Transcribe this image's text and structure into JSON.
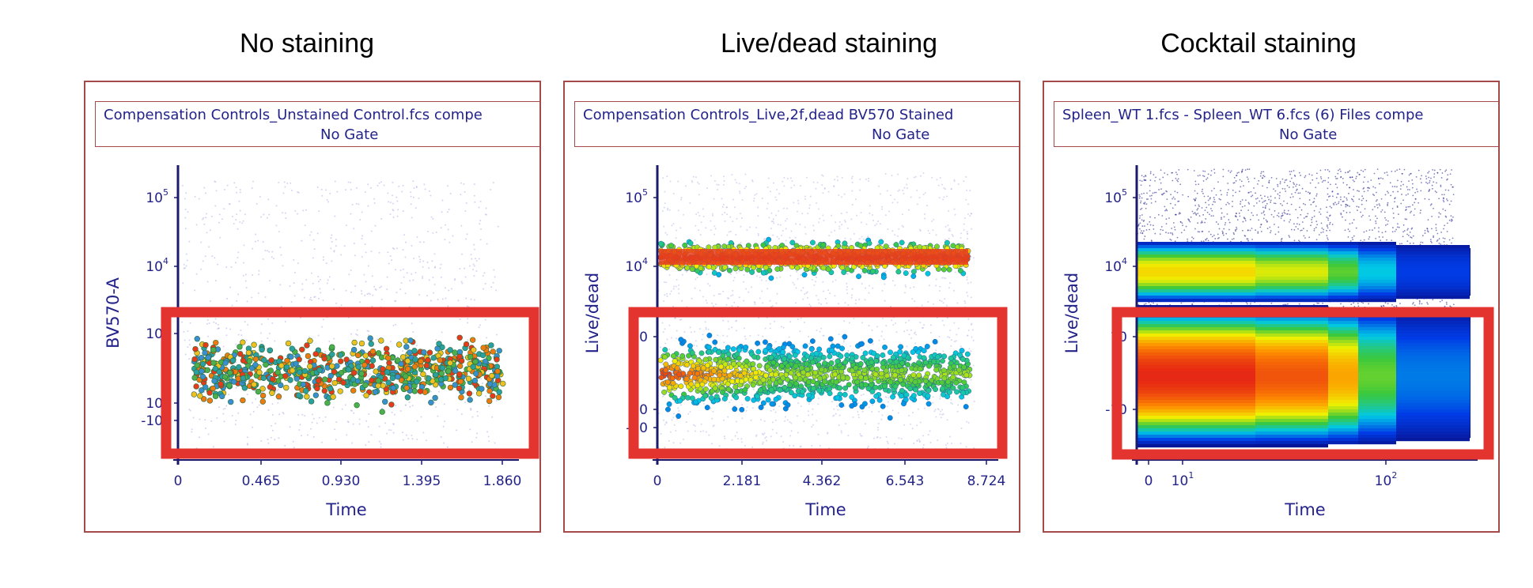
{
  "titles": [
    "No staining",
    "Live/dead staining",
    "Cocktail staining"
  ],
  "chart_data": [
    {
      "type": "scatter",
      "header_file": "Compensation Controls_Unstained Control.fcs compe",
      "header_gate": "No Gate",
      "xlabel": "Time",
      "ylabel": "BV570-A",
      "x_ticks": [
        "0",
        "0.465",
        "0.930",
        "1.395",
        "1.860"
      ],
      "y_ticks": [
        {
          "base": "10",
          "exp": "5"
        },
        {
          "base": "10",
          "exp": "4"
        },
        {
          "base": "10",
          "exp": "3"
        },
        {
          "base": "10",
          "exp": "2"
        },
        {
          "base": "-10",
          "exp": "2"
        }
      ],
      "xlim": [
        0,
        1.86
      ],
      "y_scale": "biexponential",
      "populations": [
        {
          "y_center": 80,
          "description_level": "low"
        }
      ],
      "highlight": "low-signal region boxed in red"
    },
    {
      "type": "scatter",
      "header_file": "Compensation Controls_Live,2f,dead BV570 Stained",
      "header_gate": "No Gate",
      "xlabel": "Time",
      "ylabel": "Live/dead",
      "x_ticks": [
        "0",
        "2.181",
        "4.362",
        "6.543",
        "8.724"
      ],
      "y_ticks": [
        {
          "base": "10",
          "exp": "5"
        },
        {
          "base": "10",
          "exp": "4"
        },
        {
          "base": "10",
          "exp": ""
        },
        {
          "base": "10",
          "exp": ""
        },
        {
          "base": "-10",
          "exp": ""
        }
      ],
      "xlim": [
        0,
        8.724
      ],
      "y_scale": "biexponential",
      "populations": [
        {
          "y_center": 10000,
          "description_level": "dead"
        },
        {
          "y_center": 150,
          "description_level": "live"
        }
      ],
      "highlight": "low-signal region boxed in red"
    },
    {
      "type": "scatter",
      "header_file": "Spleen_WT 1.fcs - Spleen_WT 6.fcs (6) Files compe",
      "header_gate": "No Gate",
      "xlabel": "Time",
      "ylabel": "Live/dead",
      "x_ticks": [
        {
          "base": "0",
          "exp": ""
        },
        {
          "base": "10",
          "exp": "1"
        },
        {
          "base": "10",
          "exp": "2"
        }
      ],
      "y_ticks": [
        {
          "base": "10",
          "exp": "5"
        },
        {
          "base": "10",
          "exp": "4"
        },
        {
          "base": "10",
          "exp": ""
        },
        {
          "base": "-10",
          "exp": ""
        }
      ],
      "x_scale": "log",
      "y_scale": "biexponential",
      "populations": [
        {
          "y_center": 100,
          "description_level": "live"
        },
        {
          "y_center": 4000,
          "description_level": "dead"
        }
      ],
      "highlight": "low-signal region boxed in red"
    }
  ],
  "colors": {
    "frame": "#a44a4a",
    "axis": "#1a1a6e",
    "label": "#23238a",
    "highlight": "#e3342f"
  }
}
